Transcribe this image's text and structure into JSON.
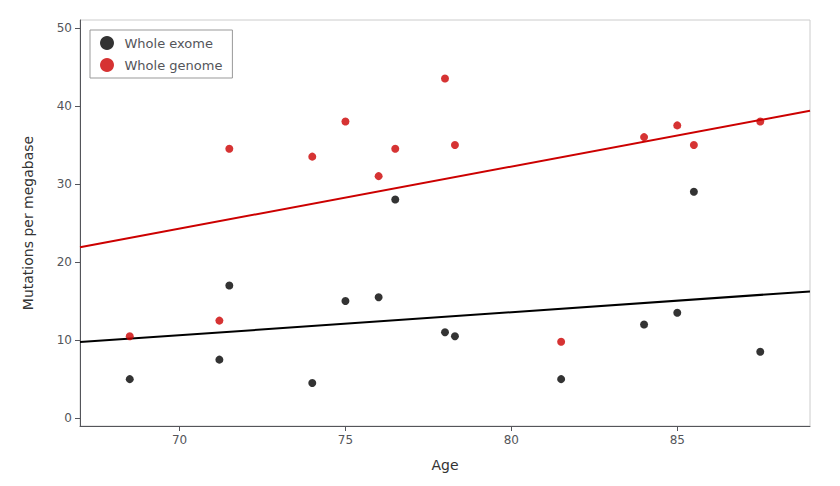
{
  "chart_data": {
    "type": "scatter",
    "xlabel": "Age",
    "ylabel": "Mutations per megabase",
    "xlim": [
      67.0,
      89.0
    ],
    "ylim": [
      -1.0,
      51.0
    ],
    "xticks": [
      70,
      75,
      80,
      85
    ],
    "yticks": [
      0,
      10,
      20,
      30,
      40,
      50
    ],
    "grid": false,
    "legend": "upper left",
    "series": [
      {
        "name": "Whole exome",
        "type": "scatter",
        "marker": "circle",
        "color": "#000000",
        "x": [
          68.5,
          71.2,
          71.5,
          74.0,
          75.0,
          76.0,
          76.5,
          78.0,
          78.3,
          81.5,
          84.0,
          85.0,
          85.5,
          87.5
        ],
        "values": [
          5.0,
          7.5,
          17.0,
          4.5,
          15.0,
          15.5,
          28.0,
          11.0,
          10.5,
          5.0,
          12.0,
          13.5,
          29.0,
          8.5
        ]
      },
      {
        "name": "Whole genome",
        "type": "scatter",
        "marker": "circle",
        "color": "#cc0000",
        "x": [
          68.5,
          71.2,
          71.5,
          74.0,
          75.0,
          76.0,
          76.5,
          78.0,
          78.3,
          81.5,
          84.0,
          85.0,
          85.5,
          87.5
        ],
        "values": [
          10.5,
          12.5,
          34.5,
          33.5,
          38.0,
          31.0,
          34.5,
          43.5,
          35.0,
          9.8,
          36.0,
          37.5,
          35.0,
          38.0
        ]
      },
      {
        "type": "line",
        "line_style": "solid",
        "color": "#000000",
        "x": [
          67.0,
          89.0
        ],
        "values": [
          9.7438,
          16.2351
        ]
      },
      {
        "type": "line",
        "line_style": "solid",
        "color": "#cc0000",
        "x": [
          67.0,
          89.0
        ],
        "values": [
          21.8924,
          39.3794
        ]
      }
    ]
  }
}
